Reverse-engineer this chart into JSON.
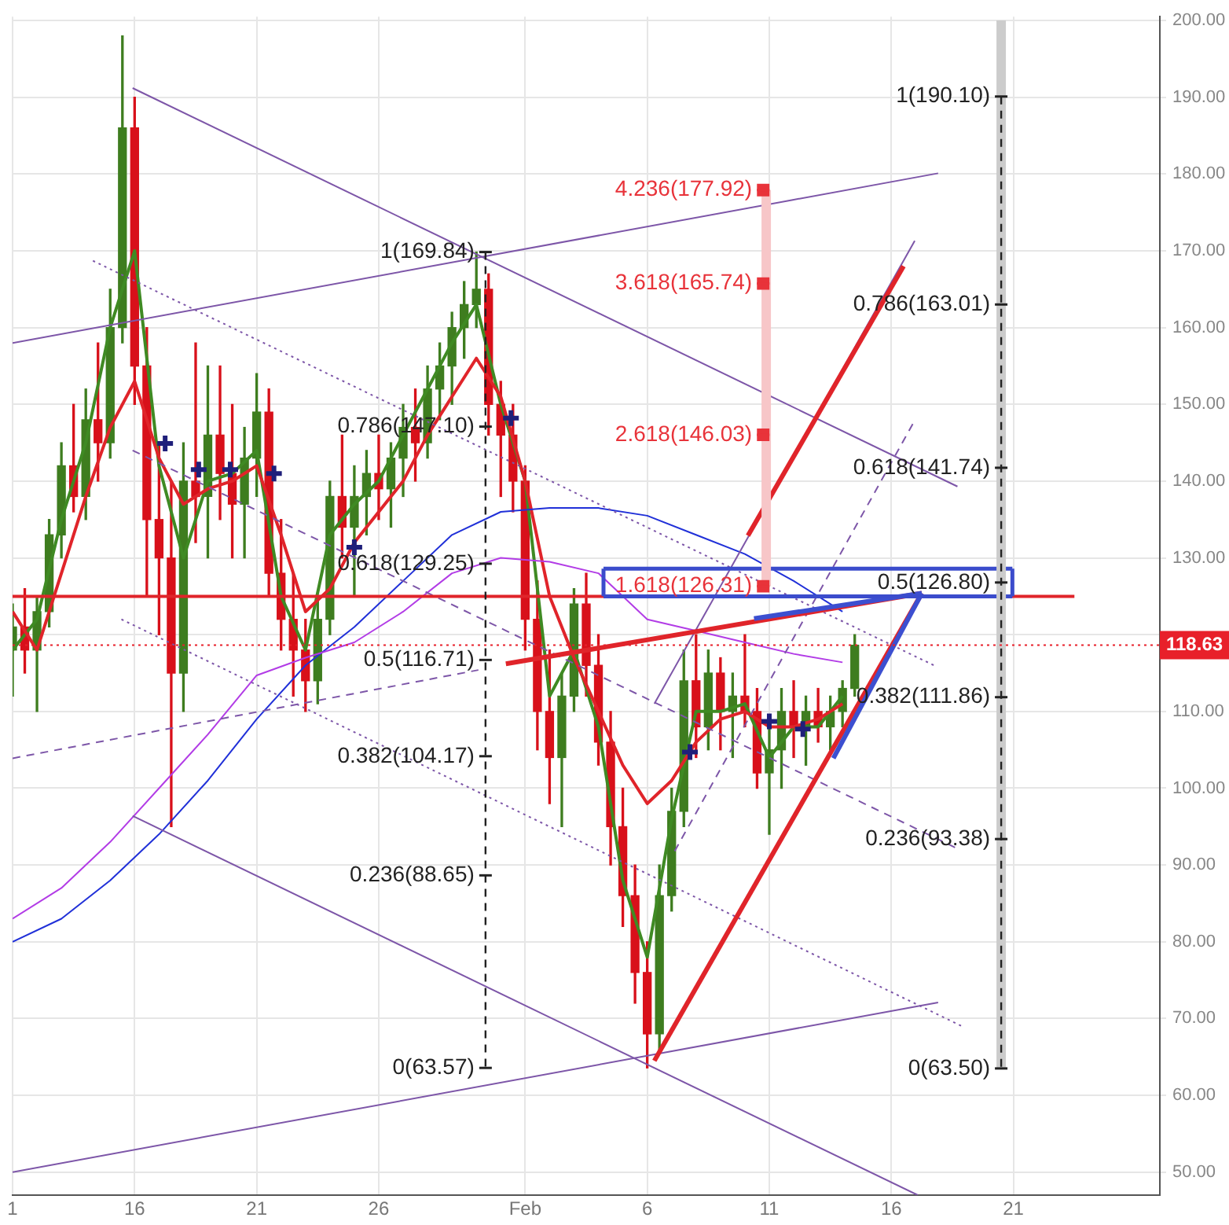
{
  "chart_data": {
    "type": "candlestick",
    "grid": true,
    "legend": false,
    "xlim": [
      "--01-11",
      "--02-27"
    ],
    "xticks": [
      {
        "value": "--01-11",
        "label": "1"
      },
      {
        "value": "--01-16",
        "label": "16"
      },
      {
        "value": "--01-21",
        "label": "21"
      },
      {
        "value": "--01-26",
        "label": "26"
      },
      {
        "value": "--02-01",
        "label": "Feb"
      },
      {
        "value": "--02-06",
        "label": "6"
      },
      {
        "value": "--02-11",
        "label": "11"
      },
      {
        "value": "--02-16",
        "label": "16"
      },
      {
        "value": "--02-21",
        "label": "21"
      }
    ],
    "ylim": [
      47,
      200.5
    ],
    "yticks": [
      {
        "value": 50,
        "label": "50.00"
      },
      {
        "value": 60,
        "label": "60.00"
      },
      {
        "value": 70,
        "label": "70.00"
      },
      {
        "value": 80,
        "label": "80.00"
      },
      {
        "value": 90,
        "label": "90.00"
      },
      {
        "value": 100,
        "label": "100.00"
      },
      {
        "value": 110,
        "label": "110.00"
      },
      {
        "value": 120,
        "label": null
      },
      {
        "value": 130,
        "label": "130.00"
      },
      {
        "value": 140,
        "label": "140.00"
      },
      {
        "value": 150,
        "label": "150.00"
      },
      {
        "value": 160,
        "label": "160.00"
      },
      {
        "value": 170,
        "label": "170.00"
      },
      {
        "value": 180,
        "label": "180.00"
      },
      {
        "value": 190,
        "label": "190.00"
      },
      {
        "value": 200,
        "label": "200.00"
      }
    ],
    "x": [
      "--01-11T00:00",
      "--01-11T12:00",
      "--01-12T00:00",
      "--01-12T12:00",
      "--01-13T00:00",
      "--01-13T12:00",
      "--01-14T00:00",
      "--01-14T12:00",
      "--01-15T00:00",
      "--01-15T12:00",
      "--01-16T00:00",
      "--01-16T12:00",
      "--01-17T00:00",
      "--01-17T12:00",
      "--01-18T00:00",
      "--01-18T12:00",
      "--01-19T00:00",
      "--01-19T12:00",
      "--01-20T00:00",
      "--01-20T12:00",
      "--01-21T00:00",
      "--01-21T12:00",
      "--01-22T00:00",
      "--01-22T12:00",
      "--01-23T00:00",
      "--01-23T12:00",
      "--01-24T00:00",
      "--01-24T12:00",
      "--01-25T00:00",
      "--01-25T12:00",
      "--01-26T00:00",
      "--01-26T12:00",
      "--01-27T00:00",
      "--01-27T12:00",
      "--01-28T00:00",
      "--01-28T12:00",
      "--01-29T00:00",
      "--01-29T12:00",
      "--01-30T00:00",
      "--01-30T12:00",
      "--01-31T00:00",
      "--01-31T12:00",
      "--02-01T00:00",
      "--02-01T12:00",
      "--02-02T00:00",
      "--02-02T12:00",
      "--02-03T00:00",
      "--02-03T12:00",
      "--02-04T00:00",
      "--02-04T12:00",
      "--02-05T00:00",
      "--02-05T12:00",
      "--02-06T00:00",
      "--02-06T12:00",
      "--02-07T00:00",
      "--02-07T12:00",
      "--02-08T00:00",
      "--02-08T12:00",
      "--02-09T00:00",
      "--02-09T12:00",
      "--02-10T00:00",
      "--02-10T12:00",
      "--02-11T00:00",
      "--02-11T12:00",
      "--02-12T00:00",
      "--02-12T12:00",
      "--02-13T00:00",
      "--02-13T12:00",
      "--02-14T00:00",
      "--02-14T12:00"
    ],
    "ohlc": [
      [
        118,
        124,
        112,
        121
      ],
      [
        121,
        126,
        115,
        118
      ],
      [
        118,
        125,
        110,
        123
      ],
      [
        123,
        135,
        121,
        133
      ],
      [
        133,
        145,
        130,
        142
      ],
      [
        142,
        150,
        136,
        138
      ],
      [
        138,
        152,
        135,
        148
      ],
      [
        148,
        158,
        140,
        145
      ],
      [
        145,
        165,
        143,
        160
      ],
      [
        160,
        198,
        158,
        186
      ],
      [
        186,
        190,
        150,
        155
      ],
      [
        155,
        160,
        125,
        135
      ],
      [
        135,
        145,
        120,
        130
      ],
      [
        130,
        140,
        95,
        115
      ],
      [
        115,
        145,
        110,
        140
      ],
      [
        140,
        158,
        132,
        138
      ],
      [
        138,
        155,
        130,
        146
      ],
      [
        146,
        155,
        135,
        141
      ],
      [
        141,
        150,
        130,
        137
      ],
      [
        137,
        147,
        130,
        143
      ],
      [
        143,
        154,
        138,
        149
      ],
      [
        149,
        152,
        125,
        128
      ],
      [
        128,
        135,
        118,
        122
      ],
      [
        122,
        128,
        112,
        118
      ],
      [
        118,
        122,
        110,
        114
      ],
      [
        114,
        125,
        111,
        122
      ],
      [
        122,
        140,
        120,
        138
      ],
      [
        138,
        146,
        130,
        134
      ],
      [
        134,
        142,
        125,
        138
      ],
      [
        138,
        144,
        133,
        141
      ],
      [
        141,
        146,
        135,
        139
      ],
      [
        139,
        145,
        134,
        143
      ],
      [
        143,
        150,
        138,
        147
      ],
      [
        147,
        152,
        140,
        145
      ],
      [
        145,
        155,
        143,
        152
      ],
      [
        152,
        158,
        148,
        155
      ],
      [
        155,
        162,
        150,
        160
      ],
      [
        160,
        166,
        156,
        163
      ],
      [
        163,
        169.84,
        160,
        165
      ],
      [
        165,
        167,
        146,
        150
      ],
      [
        150,
        153,
        138,
        146
      ],
      [
        146,
        150,
        136,
        140
      ],
      [
        140,
        142,
        118,
        122
      ],
      [
        122,
        127,
        105,
        110
      ],
      [
        110,
        118,
        98,
        104
      ],
      [
        104,
        115,
        95,
        112
      ],
      [
        112,
        126,
        110,
        124
      ],
      [
        124,
        128,
        112,
        116
      ],
      [
        116,
        120,
        103,
        106
      ],
      [
        106,
        110,
        90,
        95
      ],
      [
        95,
        100,
        82,
        86
      ],
      [
        86,
        90,
        72,
        76
      ],
      [
        76,
        80,
        63.57,
        68
      ],
      [
        68,
        90,
        66,
        86
      ],
      [
        86,
        100,
        84,
        97
      ],
      [
        97,
        118,
        95,
        114
      ],
      [
        114,
        120,
        104,
        108
      ],
      [
        108,
        118,
        105,
        115
      ],
      [
        115,
        117,
        105,
        110
      ],
      [
        110,
        115,
        104,
        112
      ],
      [
        112,
        120,
        108,
        110
      ],
      [
        110,
        113,
        100,
        102
      ],
      [
        102,
        108,
        94,
        105
      ],
      [
        105,
        113,
        100,
        110
      ],
      [
        110,
        114,
        104,
        108
      ],
      [
        108,
        112,
        103,
        110
      ],
      [
        110,
        113,
        106,
        108
      ],
      [
        108,
        112,
        105,
        110
      ],
      [
        110,
        114,
        108,
        113
      ],
      [
        113,
        120,
        112,
        118.63
      ]
    ],
    "colors": [
      "#3e7d1f",
      "#d8101a",
      "#3e7d1f",
      "#3e7d1f",
      "#3e7d1f",
      "#d8101a",
      "#3e7d1f",
      "#d8101a",
      "#3e7d1f",
      "#3e7d1f",
      "#d8101a",
      "#d8101a",
      "#d8101a",
      "#d8101a",
      "#3e7d1f",
      "#d8101a",
      "#3e7d1f",
      "#d8101a",
      "#d8101a",
      "#3e7d1f",
      "#3e7d1f",
      "#d8101a",
      "#d8101a",
      "#d8101a",
      "#d8101a",
      "#3e7d1f",
      "#3e7d1f",
      "#d8101a",
      "#3e7d1f",
      "#3e7d1f",
      "#d8101a",
      "#3e7d1f",
      "#3e7d1f",
      "#d8101a",
      "#3e7d1f",
      "#3e7d1f",
      "#3e7d1f",
      "#3e7d1f",
      "#3e7d1f",
      "#d8101a",
      "#d8101a",
      "#d8101a",
      "#d8101a",
      "#d8101a",
      "#d8101a",
      "#3e7d1f",
      "#3e7d1f",
      "#d8101a",
      "#d8101a",
      "#d8101a",
      "#d8101a",
      "#d8101a",
      "#d8101a",
      "#3e7d1f",
      "#3e7d1f",
      "#3e7d1f",
      "#d8101a",
      "#3e7d1f",
      "#d8101a",
      "#3e7d1f",
      "#d8101a",
      "#d8101a",
      "#3e7d1f",
      "#3e7d1f",
      "#d8101a",
      "#3e7d1f",
      "#d8101a",
      "#3e7d1f",
      "#3e7d1f",
      "#3e7d1f"
    ],
    "ref_lines": [
      {
        "axis": "y",
        "value": 118.63,
        "label": "118.63",
        "color": "#e8202a",
        "line_style": "dotted"
      }
    ],
    "series": [
      {
        "type": "line",
        "color": "#3f8a23",
        "x": [
          "--01-11",
          "--01-12",
          "--01-13",
          "--01-14",
          "--01-15",
          "--01-16",
          "--01-17",
          "--01-18",
          "--01-19",
          "--01-20",
          "--01-21",
          "--01-22",
          "--01-23",
          "--01-24",
          "--01-25",
          "--01-26",
          "--01-27",
          "--01-28",
          "--01-29",
          "--01-30",
          "--01-31",
          "--02-01",
          "--02-02",
          "--02-03",
          "--02-04",
          "--02-05",
          "--02-06",
          "--02-07",
          "--02-08",
          "--02-09",
          "--02-10",
          "--02-11",
          "--02-12",
          "--02-13",
          "--02-14"
        ],
        "values": [
          118,
          122,
          135,
          145,
          160,
          170,
          142,
          130,
          140,
          141,
          144,
          125,
          118,
          133,
          137,
          140,
          146,
          152,
          158,
          163,
          150,
          140,
          112,
          118,
          108,
          88,
          78,
          96,
          110,
          110,
          111,
          104,
          108,
          108,
          112
        ]
      },
      {
        "type": "line",
        "color": "#e0242a",
        "x": [
          "--01-11",
          "--01-12",
          "--01-13",
          "--01-14",
          "--01-15",
          "--01-16",
          "--01-17",
          "--01-18",
          "--01-19",
          "--01-20",
          "--01-21",
          "--01-22",
          "--01-23",
          "--01-24",
          "--01-25",
          "--01-26",
          "--01-27",
          "--01-28",
          "--01-29",
          "--01-30",
          "--01-31",
          "--02-01",
          "--02-02",
          "--02-03",
          "--02-04",
          "--02-05",
          "--02-06",
          "--02-07",
          "--02-08",
          "--02-09",
          "--02-10",
          "--02-11",
          "--02-12",
          "--02-13",
          "--02-14"
        ],
        "values": [
          123,
          118,
          128,
          138,
          147,
          153,
          143,
          137,
          139,
          140,
          142,
          133,
          123,
          126,
          132,
          136,
          140,
          146,
          151,
          156,
          151,
          140,
          125,
          117,
          110,
          103,
          98,
          101,
          106,
          109,
          110,
          108,
          108,
          109,
          111
        ]
      },
      {
        "type": "line",
        "color": "#2030d8",
        "x": [
          "--01-11",
          "--01-13",
          "--01-15",
          "--01-17",
          "--01-19",
          "--01-21",
          "--01-23",
          "--01-25",
          "--01-27",
          "--01-29",
          "--01-31",
          "--02-02",
          "--02-04",
          "--02-06",
          "--02-08",
          "--02-10",
          "--02-12",
          "--02-14"
        ],
        "values": [
          80,
          83,
          88,
          94,
          101,
          109,
          116,
          121,
          127,
          133,
          136,
          136.5,
          136.5,
          135.5,
          133,
          130.5,
          127,
          123
        ]
      },
      {
        "type": "line",
        "color": "#b23ce6",
        "x": [
          "--01-11",
          "--01-13",
          "--01-15",
          "--01-17",
          "--01-19",
          "--01-21",
          "--01-23",
          "--01-25",
          "--01-27",
          "--01-29",
          "--01-31",
          "--02-02",
          "--02-04",
          "--02-06",
          "--02-08",
          "--02-10",
          "--02-12",
          "--02-14"
        ],
        "values": [
          83,
          87,
          93,
          100,
          107,
          114.7,
          117,
          119,
          123,
          128,
          130,
          129.5,
          128,
          122,
          120.5,
          119,
          117.5,
          116.4
        ]
      },
      {
        "type": "line",
        "color": "#7d56a8",
        "x": [
          "--01-15T22:00",
          "--02-18T17:00"
        ],
        "values": [
          191.2,
          139.3
        ]
      },
      {
        "type": "line",
        "color": "#7d56a8",
        "x": [
          "--01-11T00:00",
          "--02-17T22:00"
        ],
        "values": [
          158,
          180.1
        ]
      },
      {
        "type": "line",
        "color": "#7d56a8",
        "x": [
          "--01-11T00:00",
          "--02-17T22:00"
        ],
        "values": [
          50,
          72.1
        ]
      },
      {
        "type": "line",
        "color": "#7d56a8",
        "x": [
          "--01-15T22:00",
          "--02-17T02:00"
        ],
        "values": [
          96.4,
          47
        ]
      },
      {
        "type": "line",
        "color": "#7d56a8",
        "line_style": "dotted",
        "x": [
          "--01-14T07:00",
          "--02-17T18:00"
        ],
        "values": [
          168.7,
          116
        ]
      },
      {
        "type": "line",
        "color": "#7d56a8",
        "line_style": "dotted",
        "x": [
          "--01-15T11:00",
          "--02-18T23:00"
        ],
        "values": [
          122,
          68.9
        ]
      },
      {
        "type": "line",
        "color": "#7d56a8",
        "line_style": "dashed",
        "x": [
          "--01-15T22:00",
          "--02-18T16:00"
        ],
        "values": [
          144,
          92.2
        ]
      },
      {
        "type": "line",
        "color": "#7d56a8",
        "line_style": "dashed",
        "x": [
          "--01-11T00:00",
          "--01-30T02:00"
        ],
        "values": [
          103.9,
          115.4
        ]
      },
      {
        "type": "line",
        "color": "#7d56a8",
        "x": [
          "--02-06T07:00",
          "--02-16T23:00"
        ],
        "values": [
          111,
          171.3
        ]
      },
      {
        "type": "line",
        "color": "#7d56a8",
        "line_style": "dashed",
        "x": [
          "--02-07T03:00",
          "--02-16T23:00"
        ],
        "values": [
          91.8,
          147.9
        ]
      },
      {
        "type": "line",
        "color": "#e0242a",
        "x": [
          "--01-11T00:00",
          "--02-23T12:00"
        ],
        "values": [
          125,
          125
        ]
      },
      {
        "type": "line",
        "color": "#e0242a",
        "x": [
          "--01-31T05:00",
          "--02-17T06:00"
        ],
        "values": [
          116.2,
          125.4
        ]
      },
      {
        "type": "line",
        "color": "#e0242a",
        "x": [
          "--02-06T07:00",
          "--02-17T06:00"
        ],
        "values": [
          64.5,
          125.4
        ]
      },
      {
        "type": "line",
        "color": "#e0242a",
        "x": [
          "--02-10T03:00",
          "--02-16T12:00"
        ],
        "values": [
          132.9,
          168
        ]
      },
      {
        "type": "line",
        "color": "#3c4fd0",
        "x": [
          "--02-13T15:00",
          "--02-17T06:00"
        ],
        "values": [
          103.9,
          125.4
        ]
      },
      {
        "type": "line",
        "color": "#3c4fd0",
        "x": [
          "--02-10T09:00",
          "--02-17T06:00"
        ],
        "values": [
          122.1,
          125.4
        ]
      },
      {
        "type": "line",
        "color": "#3b4ccc",
        "x": [
          "--02-04T05:00",
          "--02-20T23:00"
        ],
        "values": [
          125,
          125
        ]
      },
      {
        "type": "line",
        "color": "#3b4ccc",
        "x": [
          "--02-04T05:00",
          "--02-20T23:00"
        ],
        "values": [
          128.6,
          128.6
        ]
      },
      {
        "type": "line",
        "color": "#3b4ccc",
        "x": [
          "--02-04T05:00",
          "--02-04T05:00"
        ],
        "values": [
          125,
          128.6
        ]
      },
      {
        "type": "line",
        "color": "#3b4ccc",
        "x": [
          "--02-20T23:00",
          "--02-20T23:00"
        ],
        "values": [
          125,
          128.6
        ]
      },
      {
        "type": "line",
        "color": "#f7c6c8",
        "x": [
          "--02-10T21:00",
          "--02-10T21:00"
        ],
        "values": [
          126.31,
          177.92
        ]
      },
      {
        "type": "line",
        "color": "#cccccc",
        "x": [
          "--02-20T12:00",
          "--02-20T12:00"
        ],
        "values": [
          63.5,
          200
        ]
      },
      {
        "type": "line",
        "color": "#222222",
        "line_style": "dashed",
        "x": [
          "--01-30T09:00",
          "--01-30T09:00",
          "--01-30T09:00",
          "--01-30T09:00",
          "--01-30T09:00",
          "--01-30T09:00",
          "--01-30T09:00"
        ],
        "values": [
          169.84,
          147.1,
          129.25,
          116.71,
          104.17,
          88.65,
          63.57
        ],
        "value_labels": [
          "1(169.84)",
          "0.786(147.10)",
          "0.618(129.25)",
          "0.5(116.71)",
          "0.382(104.17)",
          "0.236(88.65)",
          "0(63.57)"
        ]
      },
      {
        "type": "line",
        "color": "#222222",
        "line_style": "dashed",
        "x": [
          "--02-20T12:00",
          "--02-20T12:00",
          "--02-20T12:00",
          "--02-20T12:00",
          "--02-20T12:00",
          "--02-20T12:00",
          "--02-20T12:00"
        ],
        "values": [
          190.1,
          163.01,
          141.74,
          126.8,
          111.86,
          93.38,
          63.5
        ],
        "value_labels": [
          "1(190.10)",
          "0.786(163.01)",
          "0.618(141.74)",
          "0.5(126.80)",
          "0.382(111.86)",
          "0.236(93.38)",
          "0(63.50)"
        ]
      },
      {
        "type": "scatter",
        "color": "#e8333a",
        "marker": "square",
        "x": [
          "--02-10T18:00",
          "--02-10T18:00",
          "--02-10T18:00",
          "--02-10T18:00"
        ],
        "values": [
          177.92,
          165.74,
          146.03,
          126.31
        ],
        "value_labels": [
          "4.236(177.92)",
          "3.618(165.74)",
          "2.618(146.03)",
          "1.618(126.31)"
        ]
      },
      {
        "type": "scatter",
        "color": "#1f1f7a",
        "marker": "cross",
        "x": [
          "--01-17T06:00",
          "--01-18T15:00",
          "--01-19T22:00",
          "--01-21T17:00",
          "--01-25T00:00",
          "--01-31T10:00",
          "--02-07T18:00",
          "--02-11T00:00",
          "--02-12T09:00"
        ],
        "values": [
          144.9,
          141.5,
          141.5,
          141,
          131.4,
          148.2,
          104.7,
          108.7,
          107.7
        ]
      }
    ]
  }
}
